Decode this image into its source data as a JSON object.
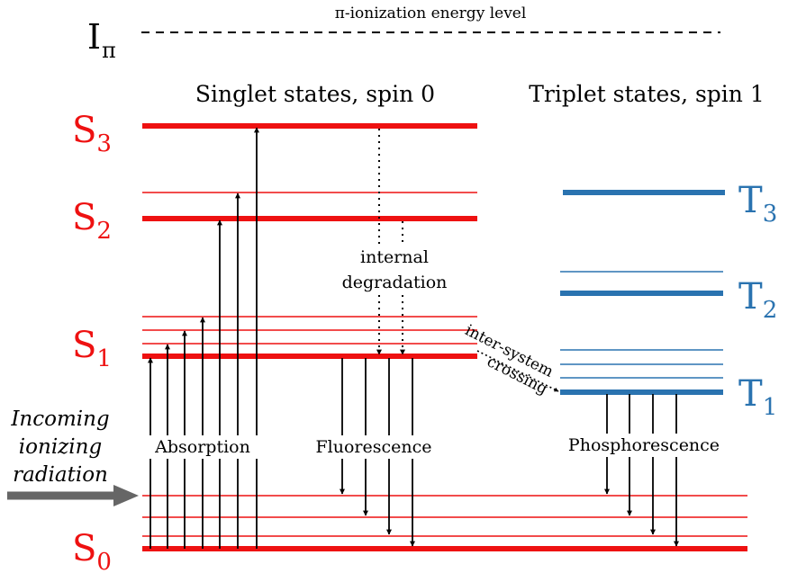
{
  "colors": {
    "singlet": "#ee1111",
    "triplet": "#2a73b0",
    "ink": "#000000",
    "arrow_gray": "#666666"
  },
  "ionization": {
    "symbol": "I",
    "subscript": "π",
    "caption": "π-ionization energy level"
  },
  "headers": {
    "singlet": "Singlet states, spin 0",
    "triplet": "Triplet states, spin 1"
  },
  "singlet_levels": [
    {
      "letter": "S",
      "sub": "3"
    },
    {
      "letter": "S",
      "sub": "2"
    },
    {
      "letter": "S",
      "sub": "1"
    },
    {
      "letter": "S",
      "sub": "0"
    }
  ],
  "triplet_levels": [
    {
      "letter": "T",
      "sub": "3"
    },
    {
      "letter": "T",
      "sub": "2"
    },
    {
      "letter": "T",
      "sub": "1"
    }
  ],
  "process_labels": {
    "internal_line1": "internal",
    "internal_line2": "degradation",
    "isc_line1": "inter-system",
    "isc_line2": "crossing",
    "absorption": "Absorption",
    "fluorescence": "Fluorescence",
    "phosphorescence": "Phosphorescence"
  },
  "incoming": {
    "line1": "Incoming",
    "line2": "ionizing",
    "line3": "radiation"
  }
}
